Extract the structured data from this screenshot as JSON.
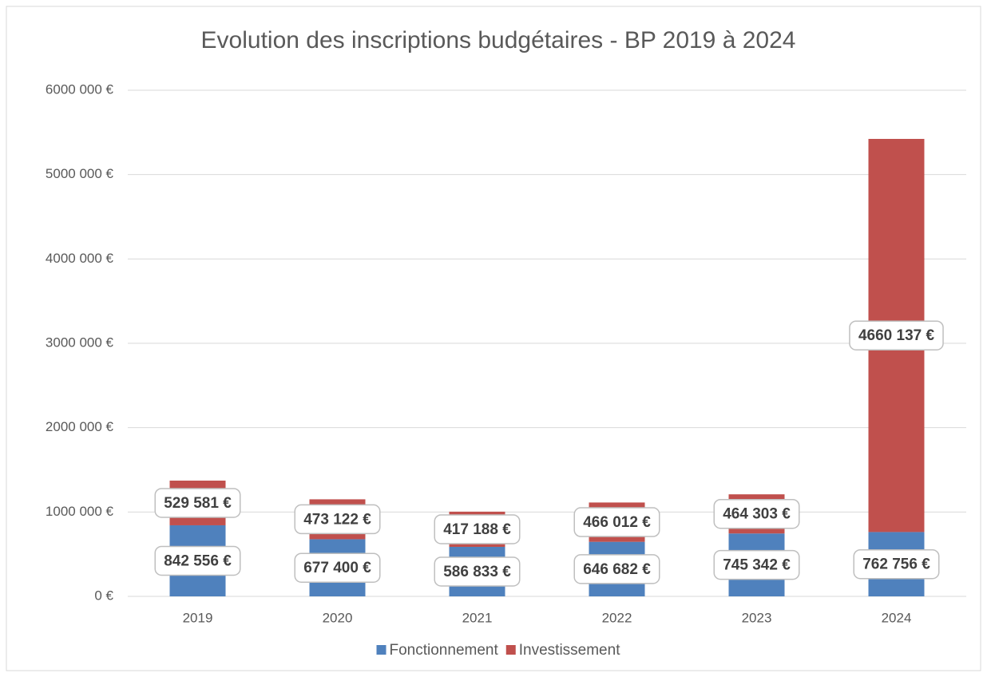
{
  "chart_data": {
    "type": "stacked_bar",
    "title": "Evolution des inscriptions budgétaires - BP 2019 à 2024",
    "categories": [
      "2019",
      "2020",
      "2021",
      "2022",
      "2023",
      "2024"
    ],
    "series": [
      {
        "name": "Fonctionnement",
        "color": "#4f81bd",
        "values": [
          842556,
          677400,
          586833,
          646682,
          745342,
          762756
        ],
        "value_labels": [
          "842 556 €",
          "677 400 €",
          "586 833 €",
          "646 682 €",
          "745 342 €",
          "762 756 €"
        ]
      },
      {
        "name": "Investissement",
        "color": "#c0504d",
        "values": [
          529581,
          473122,
          417188,
          466012,
          464303,
          4660137
        ],
        "value_labels": [
          "529 581 €",
          "473 122 €",
          "417 188 €",
          "466 012 €",
          "464 303 €",
          "4660 137 €"
        ]
      }
    ],
    "ylim": [
      0,
      6000000
    ],
    "yticks": [
      {
        "value": 0,
        "label": "0 €"
      },
      {
        "value": 1000000,
        "label": "1000 000 €"
      },
      {
        "value": 2000000,
        "label": "2000 000 €"
      },
      {
        "value": 3000000,
        "label": "3000 000 €"
      },
      {
        "value": 4000000,
        "label": "4000 000 €"
      },
      {
        "value": 5000000,
        "label": "5000 000 €"
      },
      {
        "value": 6000000,
        "label": "6000 000 €"
      }
    ],
    "grid": true,
    "legend": "bottom"
  }
}
